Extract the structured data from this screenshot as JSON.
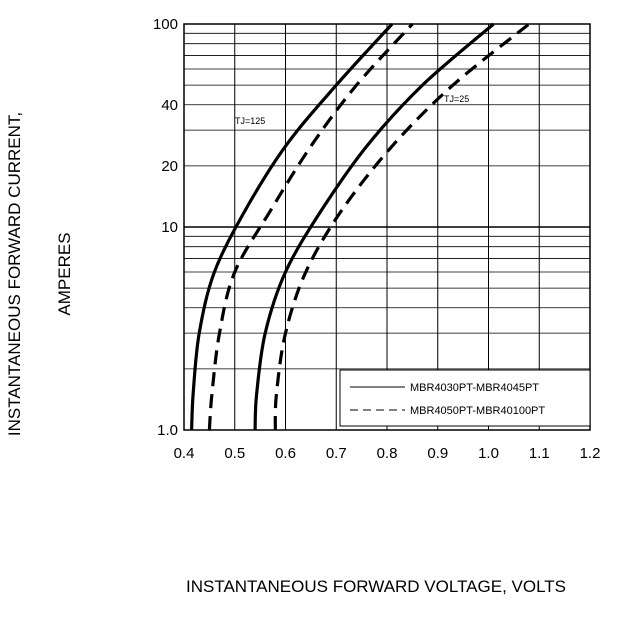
{
  "chart_data": {
    "type": "line",
    "title": "",
    "xlabel": "INSTANTANEOUS FORWARD VOLTAGE,  VOLTS",
    "ylabel": [
      "INSTANTANEOUS FORWARD CURRENT,",
      "AMPERES"
    ],
    "x_scale": "linear",
    "y_scale": "log",
    "xlim": [
      0.4,
      1.2
    ],
    "ylim": [
      1,
      100
    ],
    "x_ticks": [
      "0.4",
      "0.5",
      "0.6",
      "0.7",
      "0.8",
      "0.9",
      "1.0",
      "1.1",
      "1.2"
    ],
    "y_ticks": [
      {
        "value": 1,
        "label": "1.0"
      },
      {
        "value": 10,
        "label": "10"
      },
      {
        "value": 20,
        "label": "20"
      },
      {
        "value": 40,
        "label": "40"
      },
      {
        "value": 100,
        "label": "100"
      }
    ],
    "grid": true,
    "legend_position": "bottom-right",
    "legend": [
      {
        "label": "MBR4030PT-MBR4045PT",
        "style": "solid"
      },
      {
        "label": "MBR4050PT-MBR40100PT",
        "style": "dashed"
      }
    ],
    "annotations": [
      {
        "text": "TJ=125",
        "x": 0.47,
        "y": 30
      },
      {
        "text": "TJ=25",
        "x": 0.97,
        "y": 55
      }
    ],
    "series": [
      {
        "style": "solid",
        "x": [
          0.415,
          0.418,
          0.43,
          0.46,
          0.52,
          0.6,
          0.7,
          0.81
        ],
        "y": [
          1,
          1.5,
          3,
          6,
          12,
          25,
          50,
          100
        ]
      },
      {
        "style": "dashed",
        "x": [
          0.45,
          0.455,
          0.47,
          0.5,
          0.57,
          0.65,
          0.74,
          0.85
        ],
        "y": [
          1,
          1.5,
          3,
          6,
          12,
          25,
          50,
          100
        ]
      },
      {
        "style": "solid",
        "x": [
          0.54,
          0.543,
          0.56,
          0.6,
          0.67,
          0.76,
          0.87,
          1.01
        ],
        "y": [
          1,
          1.5,
          3,
          6,
          12,
          25,
          50,
          100
        ]
      },
      {
        "style": "dashed",
        "x": [
          0.58,
          0.582,
          0.6,
          0.64,
          0.71,
          0.81,
          0.93,
          1.08
        ],
        "y": [
          1,
          1.5,
          3,
          6,
          12,
          25,
          50,
          100
        ]
      }
    ]
  }
}
